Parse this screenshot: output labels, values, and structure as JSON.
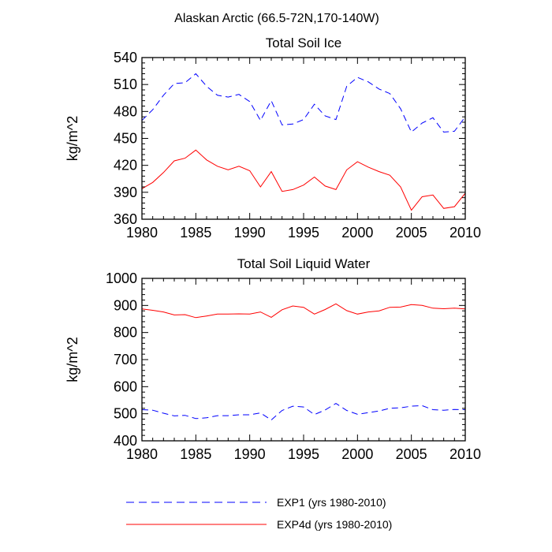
{
  "suptitle": "Alaskan Arctic (66.5-72N,170-140W)",
  "chart_data": [
    {
      "type": "line",
      "title": "Total Soil Ice",
      "xlabel": "",
      "ylabel": "kg/m^2",
      "xlim": [
        1980,
        2010
      ],
      "ylim": [
        360,
        540
      ],
      "xticks": [
        1980,
        1985,
        1990,
        1995,
        2000,
        2005,
        2010
      ],
      "yticks": [
        360,
        390,
        420,
        450,
        480,
        510,
        540
      ],
      "x": [
        1980,
        1981,
        1982,
        1983,
        1984,
        1985,
        1986,
        1987,
        1988,
        1989,
        1990,
        1991,
        1992,
        1993,
        1994,
        1995,
        1996,
        1997,
        1998,
        1999,
        2000,
        2001,
        2002,
        2003,
        2004,
        2005,
        2006,
        2007,
        2008,
        2009,
        2010
      ],
      "series": [
        {
          "name": "EXP1 (yrs 1980-2010)",
          "color": "#0000ff",
          "dash": "dashed",
          "values": [
            470,
            482,
            498,
            511,
            512,
            522,
            508,
            498,
            496,
            499,
            491,
            470,
            492,
            465,
            466,
            471,
            488,
            475,
            471,
            508,
            518,
            513,
            505,
            500,
            483,
            457,
            467,
            473,
            457,
            458,
            474
          ]
        },
        {
          "name": "EXP4d (yrs 1980-2010)",
          "color": "#ff0000",
          "dash": "solid",
          "values": [
            394,
            401,
            412,
            425,
            428,
            437,
            426,
            419,
            415,
            419,
            414,
            396,
            413,
            391,
            393,
            398,
            407,
            397,
            393,
            415,
            424,
            418,
            413,
            409,
            396,
            370,
            385,
            387,
            372,
            374,
            389
          ]
        }
      ]
    },
    {
      "type": "line",
      "title": "Total Soil Liquid Water",
      "xlabel": "",
      "ylabel": "kg/m^2",
      "xlim": [
        1980,
        2010
      ],
      "ylim": [
        400,
        1000
      ],
      "xticks": [
        1980,
        1985,
        1990,
        1995,
        2000,
        2005,
        2010
      ],
      "yticks": [
        400,
        500,
        600,
        700,
        800,
        900,
        1000
      ],
      "x": [
        1980,
        1981,
        1982,
        1983,
        1984,
        1985,
        1986,
        1987,
        1988,
        1989,
        1990,
        1991,
        1992,
        1993,
        1994,
        1995,
        1996,
        1997,
        1998,
        1999,
        2000,
        2001,
        2002,
        2003,
        2004,
        2005,
        2006,
        2007,
        2008,
        2009,
        2010
      ],
      "series": [
        {
          "name": "EXP1 (yrs 1980-2010)",
          "color": "#0000ff",
          "dash": "dashed",
          "values": [
            515,
            513,
            502,
            492,
            494,
            482,
            485,
            493,
            493,
            496,
            496,
            503,
            477,
            512,
            528,
            525,
            497,
            514,
            538,
            512,
            498,
            504,
            510,
            520,
            522,
            528,
            530,
            515,
            513,
            516,
            515
          ]
        },
        {
          "name": "EXP4d (yrs 1980-2010)",
          "color": "#ff0000",
          "dash": "solid",
          "values": [
            887,
            882,
            876,
            865,
            866,
            855,
            861,
            868,
            868,
            869,
            868,
            876,
            856,
            884,
            898,
            893,
            868,
            885,
            906,
            881,
            868,
            876,
            880,
            893,
            894,
            903,
            900,
            890,
            888,
            890,
            887
          ]
        }
      ]
    }
  ],
  "legend": [
    {
      "label": "EXP1 (yrs 1980-2010)",
      "color": "#0000ff",
      "dash": "dashed"
    },
    {
      "label": "EXP4d (yrs 1980-2010)",
      "color": "#ff0000",
      "dash": "solid"
    }
  ]
}
